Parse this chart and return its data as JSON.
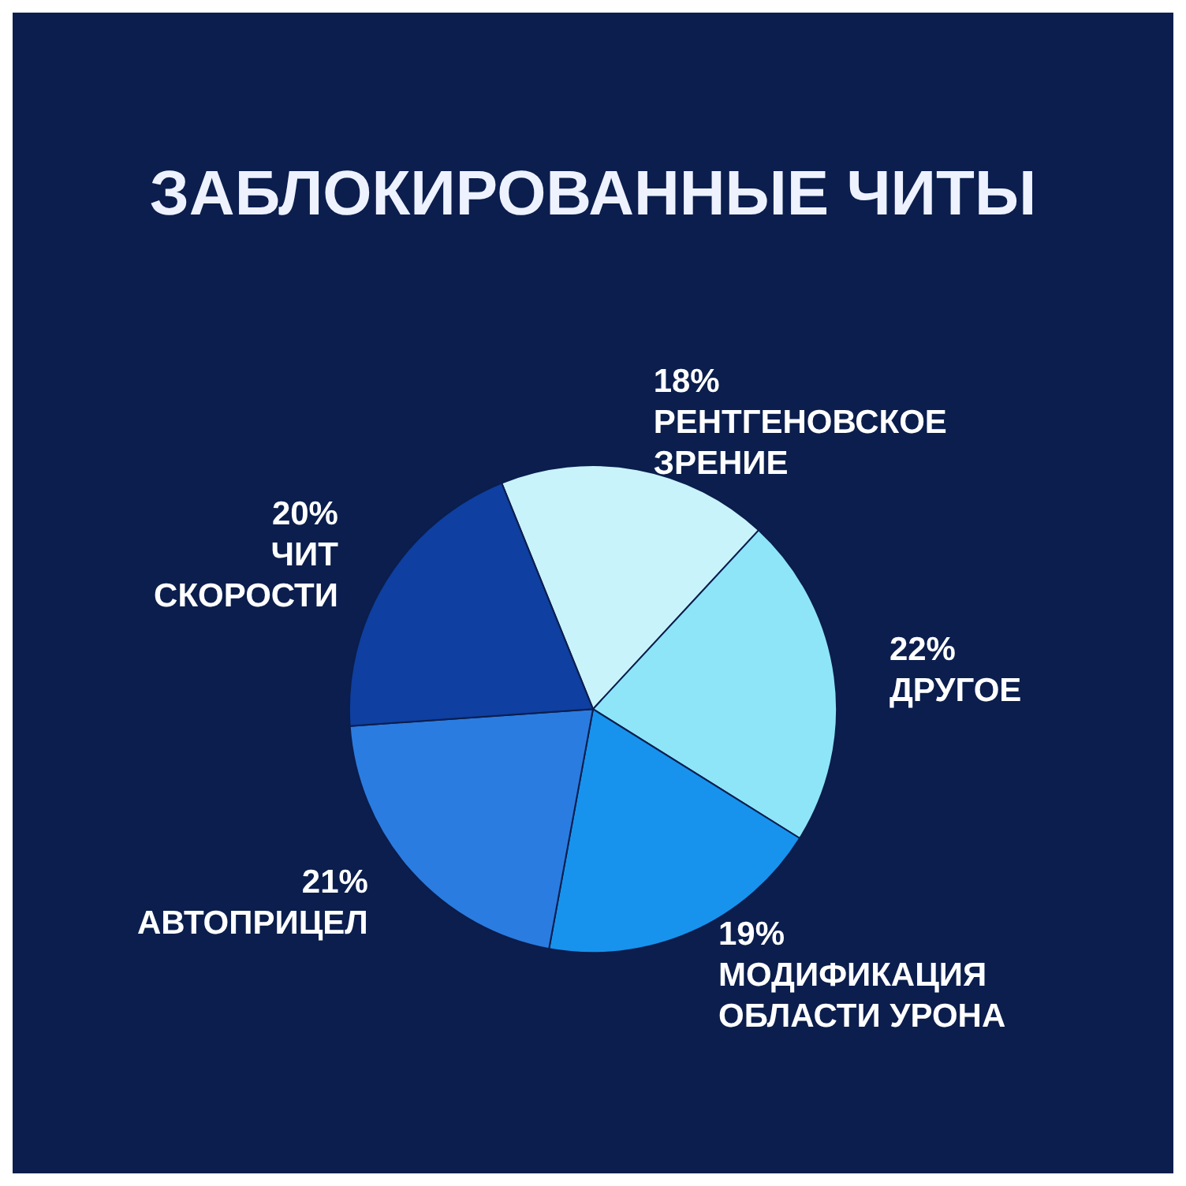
{
  "chart_data": {
    "type": "pie",
    "title": "ЗАБЛОКИРОВАННЫЕ ЧИТЫ",
    "categories": [
      "РЕНТГЕНОВСКОЕ ЗРЕНИЕ",
      "ДРУГОЕ",
      "МОДИФИКАЦИЯ ОБЛАСТИ УРОНА",
      "АВТОПРИЦЕЛ",
      "ЧИТ СКОРОСТИ"
    ],
    "values": [
      18,
      22,
      19,
      21,
      20
    ],
    "value_labels": [
      "18%",
      "22%",
      "19%",
      "21%",
      "20%"
    ],
    "colors": [
      "#c9f3fb",
      "#8ee5f8",
      "#1793ee",
      "#2b7ce0",
      "#0e3fa1"
    ],
    "legend": false
  }
}
